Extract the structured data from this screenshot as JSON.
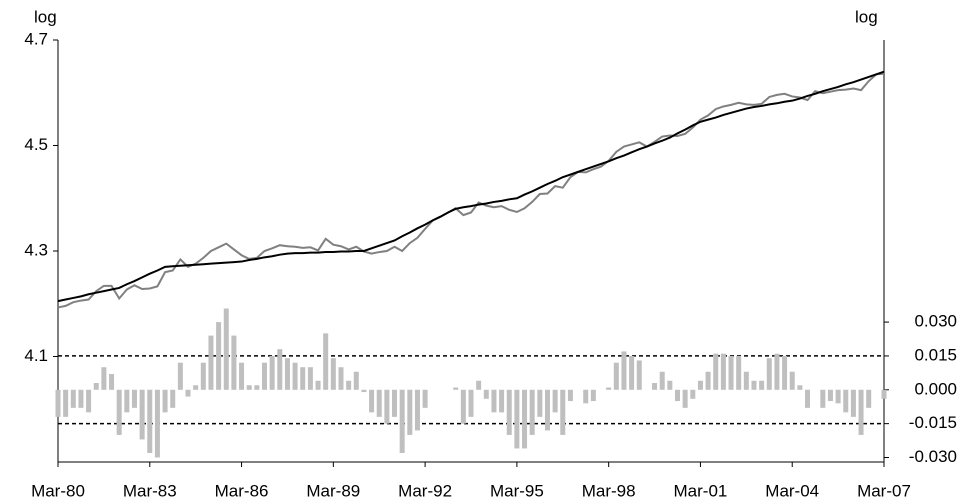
{
  "chart_data": {
    "type": "line",
    "ylabel": "log",
    "y2label": "log",
    "categories": [
      "Mar-80",
      null,
      null,
      null,
      null,
      null,
      null,
      null,
      null,
      null,
      null,
      null,
      "Mar-83",
      null,
      null,
      null,
      null,
      null,
      null,
      null,
      null,
      null,
      null,
      null,
      "Mar-86",
      null,
      null,
      null,
      null,
      null,
      null,
      null,
      null,
      null,
      null,
      null,
      "Mar-89",
      null,
      null,
      null,
      null,
      null,
      null,
      null,
      null,
      null,
      null,
      null,
      "Mar-92",
      null,
      null,
      null,
      null,
      null,
      null,
      null,
      null,
      null,
      null,
      null,
      "Mar-95",
      null,
      null,
      null,
      null,
      null,
      null,
      null,
      null,
      null,
      null,
      null,
      "Mar-98",
      null,
      null,
      null,
      null,
      null,
      null,
      null,
      null,
      null,
      null,
      null,
      "Mar-01",
      null,
      null,
      null,
      null,
      null,
      null,
      null,
      null,
      null,
      null,
      null,
      "Mar-04",
      null,
      null,
      null,
      null,
      null,
      null,
      null,
      null,
      null,
      null,
      null,
      "Mar-07"
    ],
    "ylim": [
      3.9,
      4.7
    ],
    "yticks": [
      4.1,
      4.3,
      4.5,
      4.7
    ],
    "y2lim": [
      -0.032,
      0.155
    ],
    "y2ticks": [
      {
        "value": 0.03,
        "label": "0.030"
      },
      {
        "value": 0.015,
        "label": "0.015"
      },
      {
        "value": 0,
        "label": "0.000"
      },
      {
        "value": -0.015,
        "label": "-0.015"
      },
      {
        "value": -0.03,
        "label": "-0.030"
      }
    ],
    "hlines_y2": [
      0.015,
      -0.015
    ],
    "series": [
      {
        "type": "bar",
        "axis": "y2",
        "color": "#bfbfbf",
        "values": [
          -0.012,
          -0.012,
          -0.008,
          -0.008,
          -0.01,
          0.003,
          0.01,
          0.007,
          -0.02,
          -0.01,
          -0.008,
          -0.022,
          -0.028,
          -0.03,
          -0.01,
          -0.008,
          0.012,
          -0.003,
          0.002,
          0.012,
          0.024,
          0.03,
          0.036,
          0.024,
          0.012,
          0.002,
          0.002,
          0.012,
          0.015,
          0.018,
          0.014,
          0.012,
          0.01,
          0.01,
          0.004,
          0.025,
          0.014,
          0.01,
          0.004,
          0.008,
          -0.001,
          -0.01,
          -0.012,
          -0.015,
          -0.012,
          -0.028,
          -0.02,
          -0.018,
          -0.008,
          0,
          0,
          0,
          0.001,
          -0.015,
          -0.012,
          0.004,
          -0.004,
          -0.01,
          -0.01,
          -0.02,
          -0.026,
          -0.026,
          -0.02,
          -0.012,
          -0.018,
          -0.01,
          -0.02,
          -0.005,
          0,
          -0.006,
          -0.005,
          0,
          0.001,
          0.012,
          0.017,
          0.015,
          0.013,
          0,
          0.003,
          0.008,
          0.004,
          -0.005,
          -0.008,
          -0.004,
          0.004,
          0.008,
          0.016,
          0.016,
          0.015,
          0.015,
          0.008,
          0.004,
          0.004,
          0.014,
          0.016,
          0.015,
          0.008,
          0.002,
          -0.008,
          0,
          -0.008,
          -0.005,
          -0.006,
          -0.01,
          -0.012,
          -0.02,
          -0.008,
          0,
          -0.004
        ]
      },
      {
        "type": "line",
        "color": "#808080",
        "values": [
          4.193,
          4.196,
          4.203,
          4.206,
          4.208,
          4.224,
          4.234,
          4.234,
          4.21,
          4.227,
          4.235,
          4.228,
          4.229,
          4.233,
          4.26,
          4.263,
          4.284,
          4.27,
          4.276,
          4.287,
          4.3,
          4.307,
          4.314,
          4.303,
          4.292,
          4.285,
          4.287,
          4.3,
          4.305,
          4.311,
          4.309,
          4.308,
          4.306,
          4.307,
          4.301,
          4.323,
          4.312,
          4.309,
          4.303,
          4.308,
          4.299,
          4.295,
          4.298,
          4.3,
          4.308,
          4.3,
          4.315,
          4.325,
          4.342,
          4.358,
          4.365,
          4.373,
          4.381,
          4.368,
          4.373,
          4.392,
          4.386,
          4.383,
          4.385,
          4.378,
          4.374,
          4.381,
          4.393,
          4.408,
          4.409,
          4.423,
          4.42,
          4.44,
          4.45,
          4.449,
          4.455,
          4.46,
          4.471,
          4.488,
          4.498,
          4.502,
          4.506,
          4.498,
          4.507,
          4.517,
          4.519,
          4.518,
          4.522,
          4.534,
          4.549,
          4.557,
          4.569,
          4.574,
          4.577,
          4.581,
          4.578,
          4.577,
          4.579,
          4.592,
          4.596,
          4.598,
          4.593,
          4.591,
          4.586,
          4.603,
          4.599,
          4.602,
          4.605,
          4.606,
          4.608,
          4.605,
          4.622,
          4.635,
          4.636
        ]
      },
      {
        "type": "line",
        "color": "#000000",
        "values": [
          4.205,
          4.208,
          4.211,
          4.214,
          4.218,
          4.221,
          4.224,
          4.227,
          4.23,
          4.237,
          4.243,
          4.25,
          4.257,
          4.263,
          4.27,
          4.271,
          4.272,
          4.273,
          4.274,
          4.275,
          4.276,
          4.277,
          4.278,
          4.279,
          4.28,
          4.283,
          4.285,
          4.288,
          4.29,
          4.293,
          4.295,
          4.296,
          4.296,
          4.297,
          4.297,
          4.298,
          4.298,
          4.299,
          4.299,
          4.3,
          4.3,
          4.305,
          4.31,
          4.315,
          4.32,
          4.328,
          4.335,
          4.343,
          4.35,
          4.358,
          4.365,
          4.373,
          4.38,
          4.383,
          4.385,
          4.388,
          4.39,
          4.393,
          4.395,
          4.398,
          4.4,
          4.407,
          4.413,
          4.42,
          4.427,
          4.433,
          4.44,
          4.445,
          4.45,
          4.455,
          4.46,
          4.465,
          4.47,
          4.476,
          4.481,
          4.487,
          4.493,
          4.498,
          4.504,
          4.509,
          4.515,
          4.523,
          4.53,
          4.538,
          4.545,
          4.549,
          4.553,
          4.558,
          4.562,
          4.566,
          4.57,
          4.573,
          4.575,
          4.578,
          4.58,
          4.583,
          4.585,
          4.589,
          4.594,
          4.598,
          4.603,
          4.607,
          4.611,
          4.616,
          4.62,
          4.625,
          4.63,
          4.635,
          4.64
        ]
      }
    ]
  }
}
